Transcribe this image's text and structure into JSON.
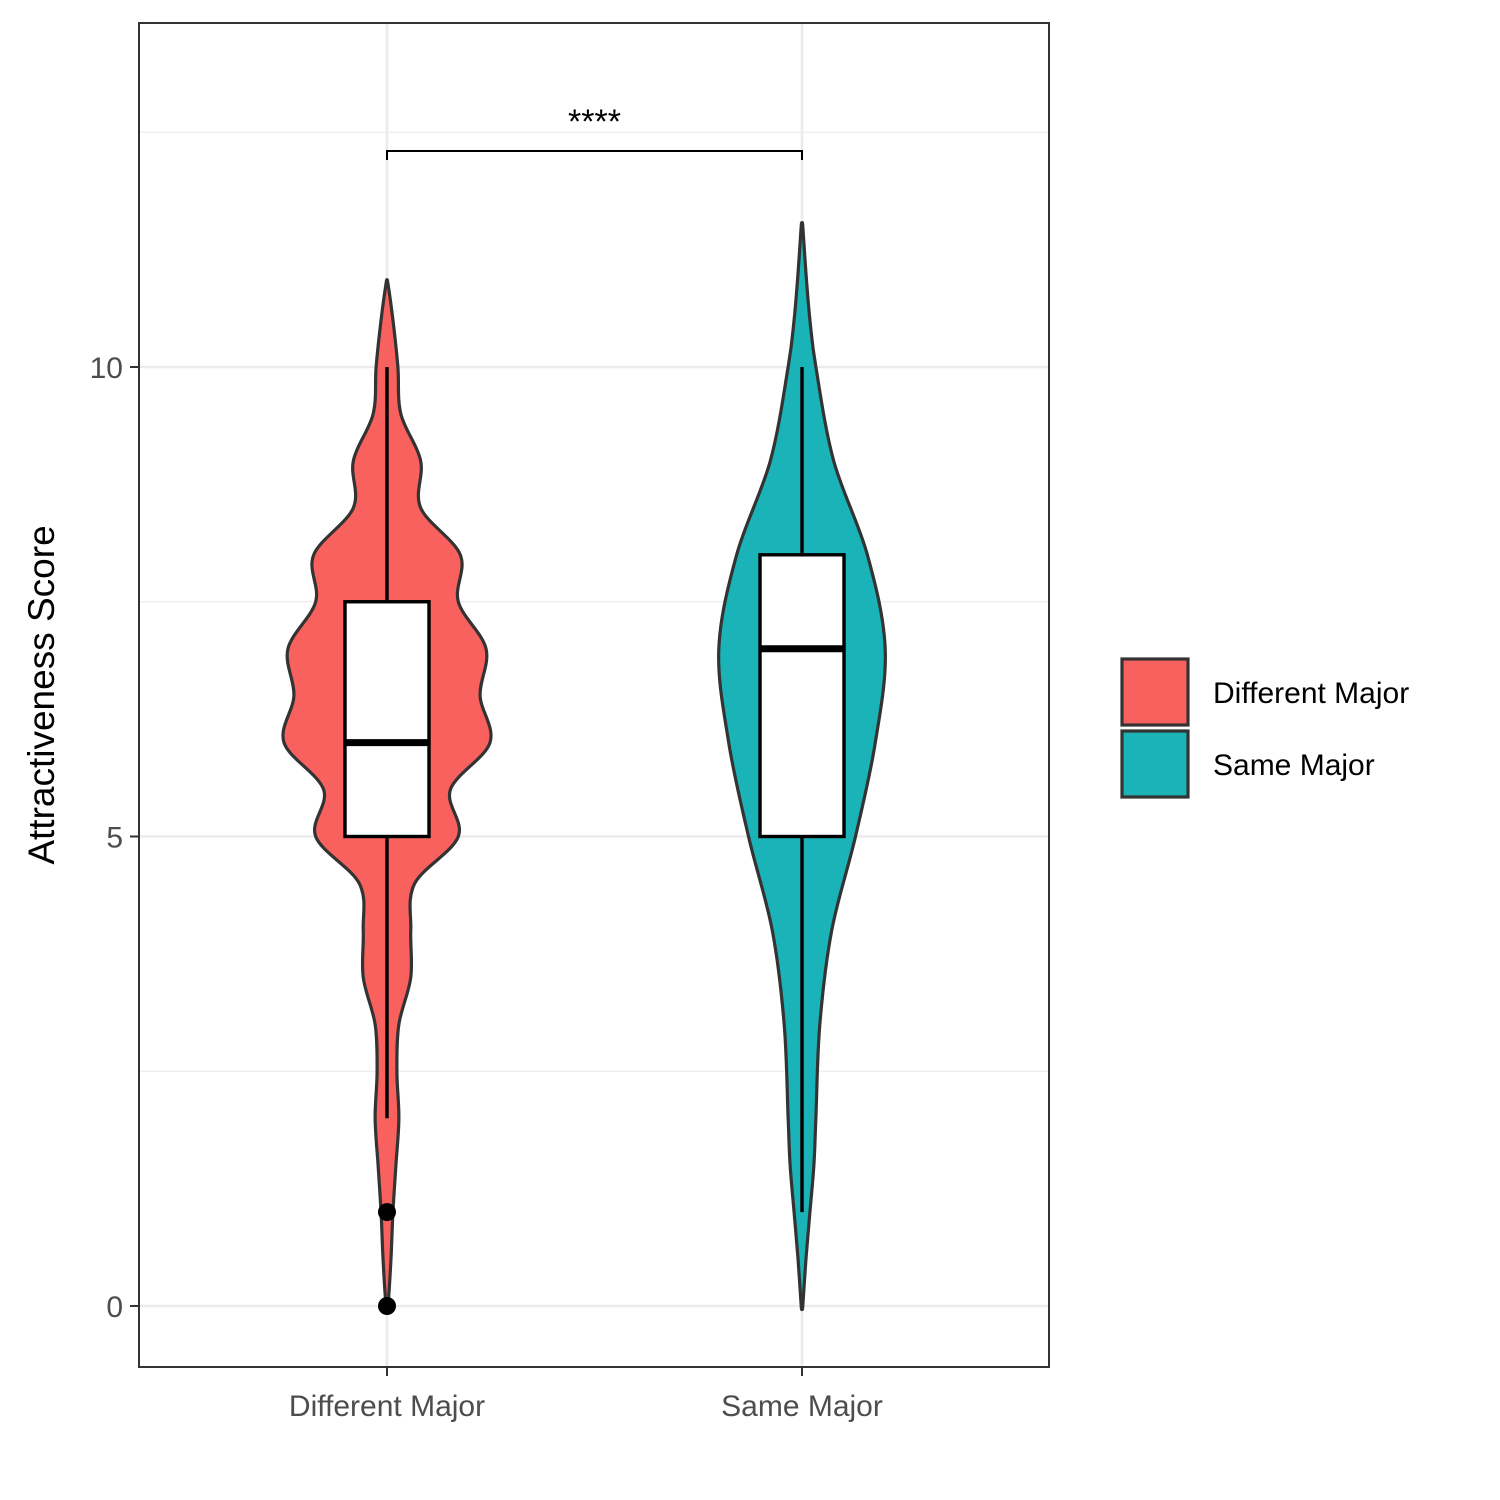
{
  "chart_data": {
    "type": "violin",
    "title": "",
    "xlabel": "",
    "ylabel": "Attractiveness Score",
    "ylim": [
      -0.6,
      13.7
    ],
    "y_ticks": [
      0,
      5,
      10
    ],
    "y_tick_labels": [
      "0",
      "5",
      "10"
    ],
    "grid": true,
    "legend": {
      "placement": "right",
      "entries": [
        "Different Major",
        "Same Major"
      ]
    },
    "categories": [
      "Different Major",
      "Same Major"
    ],
    "series": [
      {
        "name": "Different Major",
        "color": "#f8615d",
        "violin_range": [
          0,
          10.9
        ],
        "density_profile": [
          [
            0.0,
            0.005
          ],
          [
            0.5,
            0.02
          ],
          [
            1.0,
            0.03
          ],
          [
            1.5,
            0.045
          ],
          [
            2.0,
            0.06
          ],
          [
            2.5,
            0.05
          ],
          [
            3.0,
            0.06
          ],
          [
            3.5,
            0.12
          ],
          [
            4.0,
            0.12
          ],
          [
            4.5,
            0.14
          ],
          [
            5.0,
            0.36
          ],
          [
            5.5,
            0.32
          ],
          [
            6.0,
            0.52
          ],
          [
            6.5,
            0.47
          ],
          [
            7.0,
            0.5
          ],
          [
            7.5,
            0.36
          ],
          [
            8.0,
            0.37
          ],
          [
            8.5,
            0.17
          ],
          [
            9.0,
            0.17
          ],
          [
            9.5,
            0.07
          ],
          [
            10.0,
            0.055
          ],
          [
            10.5,
            0.03
          ],
          [
            10.9,
            0.004
          ]
        ],
        "box": {
          "q1": 5,
          "median": 6,
          "q3": 7.5,
          "whisker_low": 2,
          "whisker_high": 10
        },
        "outliers": [
          0,
          1
        ]
      },
      {
        "name": "Same Major",
        "color": "#19b3b8",
        "violin_range": [
          0,
          11.5
        ],
        "density_profile": [
          [
            0.0,
            0.004
          ],
          [
            0.5,
            0.02
          ],
          [
            1.0,
            0.04
          ],
          [
            1.5,
            0.06
          ],
          [
            2.0,
            0.07
          ],
          [
            3.0,
            0.09
          ],
          [
            4.0,
            0.15
          ],
          [
            5.0,
            0.27
          ],
          [
            6.0,
            0.37
          ],
          [
            7.0,
            0.42
          ],
          [
            8.0,
            0.33
          ],
          [
            9.0,
            0.16
          ],
          [
            10.0,
            0.07
          ],
          [
            10.5,
            0.04
          ],
          [
            11.0,
            0.02
          ],
          [
            11.5,
            0.004
          ]
        ],
        "box": {
          "q1": 5,
          "median": 7,
          "q3": 8,
          "whisker_low": 1,
          "whisker_high": 10
        },
        "outliers": []
      }
    ],
    "annotations": [
      {
        "type": "significance-bracket",
        "label": "****",
        "from": "Different Major",
        "to": "Same Major",
        "y": 12.3
      }
    ]
  }
}
